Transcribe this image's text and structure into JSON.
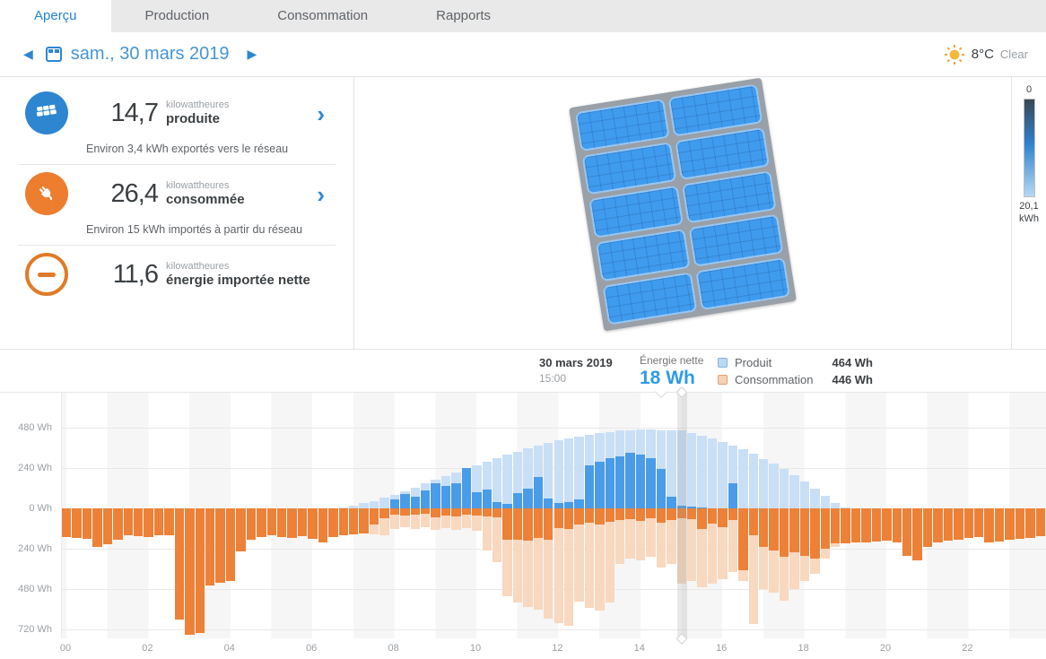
{
  "tabs": {
    "active_index": 0,
    "items": [
      "Aperçu",
      "Production",
      "Consommation",
      "Rapports"
    ]
  },
  "date_bar": {
    "date": "sam., 30 mars 2019",
    "temperature": "8°C",
    "condition": "Clear"
  },
  "stats": {
    "produced": {
      "value": "14,7",
      "unit": "kilowattheures",
      "label": "produite",
      "subtitle": "Environ 3,4 kWh exportés vers le réseau"
    },
    "consumed": {
      "value": "26,4",
      "unit": "kilowattheures",
      "label": "consommée",
      "subtitle": "Environ 15 kWh importés à partir du réseau"
    },
    "net": {
      "value": "11,6",
      "unit": "kilowattheures",
      "label": "énergie importée nette"
    }
  },
  "scale": {
    "top": "0",
    "bottom_value": "20,1",
    "bottom_unit": "kWh"
  },
  "tooltip": {
    "date": "30 mars 2019",
    "time": "15:00",
    "net_label": "Énergie nette",
    "net_value": "18 Wh",
    "legend": [
      {
        "label": "Produit",
        "value": "464 Wh",
        "swatch_color": "#bcd8f2"
      },
      {
        "label": "Consommation",
        "value": "446 Wh",
        "swatch_color": "#f6d2b4"
      }
    ]
  },
  "chart_data": {
    "type": "bar",
    "interval_minutes": 15,
    "unit": "Wh",
    "title": "Énergie par intervalle de 15 minutes, 30 mars 2019",
    "x_ticks": [
      "00",
      "02",
      "04",
      "06",
      "08",
      "10",
      "12",
      "14",
      "16",
      "18",
      "20",
      "22"
    ],
    "y_ticks_wh": [
      480,
      240,
      0,
      -240,
      -480,
      -720
    ],
    "y_tick_labels": [
      "480 Wh",
      "240 Wh",
      "0 Wh",
      "240 Wh",
      "480 Wh",
      "720 Wh"
    ],
    "ylim": [
      688,
      -779
    ],
    "selected_index": 60,
    "selected_time": "15:00",
    "grid": true,
    "legend_position": "top-right",
    "series": [
      {
        "name": "Produit (total)",
        "color": "#c9dff6",
        "values": [
          0,
          0,
          0,
          0,
          0,
          0,
          0,
          0,
          0,
          0,
          0,
          0,
          0,
          0,
          0,
          0,
          0,
          0,
          0,
          0,
          0,
          0,
          0,
          0,
          0,
          0,
          0,
          8,
          18,
          30,
          45,
          62,
          82,
          103,
          125,
          148,
          170,
          192,
          213,
          235,
          257,
          278,
          298,
          318,
          337,
          355,
          372,
          388,
          403,
          416,
          428,
          438,
          447,
          455,
          462,
          466,
          470,
          468,
          466,
          465,
          464,
          450,
          434,
          416,
          396,
          374,
          350,
          324,
          296,
          266,
          234,
          200,
          162,
          120,
          75,
          30,
          6,
          0,
          0,
          0,
          0,
          0,
          0,
          0,
          0,
          0,
          0,
          0,
          0,
          0,
          0,
          0,
          0,
          0,
          0,
          0
        ]
      },
      {
        "name": "Produit (surplus exporté)",
        "color": "#4a9ce8",
        "values": [
          0,
          0,
          0,
          0,
          0,
          0,
          0,
          0,
          0,
          0,
          0,
          0,
          0,
          0,
          0,
          0,
          0,
          0,
          0,
          0,
          0,
          0,
          0,
          0,
          0,
          0,
          0,
          0,
          0,
          0,
          0,
          0,
          55,
          85,
          70,
          105,
          150,
          135,
          150,
          240,
          95,
          110,
          35,
          25,
          90,
          115,
          185,
          60,
          30,
          40,
          55,
          255,
          280,
          300,
          310,
          330,
          320,
          300,
          235,
          70,
          18,
          10,
          5,
          0,
          0,
          150,
          0,
          0,
          0,
          0,
          0,
          0,
          0,
          0,
          0,
          0,
          0,
          0,
          0,
          0,
          0,
          0,
          0,
          0,
          0,
          0,
          0,
          0,
          0,
          0,
          0,
          0,
          0,
          0,
          0,
          0
        ]
      },
      {
        "name": "Consommation (totale)",
        "color": "#f8d8bf",
        "values": [
          -170,
          -175,
          -180,
          -230,
          -215,
          -185,
          -160,
          -165,
          -170,
          -162,
          -158,
          -660,
          -750,
          -740,
          -460,
          -440,
          -430,
          -255,
          -185,
          -172,
          -160,
          -172,
          -176,
          -166,
          -182,
          -200,
          -172,
          -162,
          -152,
          -148,
          -152,
          -162,
          -122,
          -112,
          -122,
          -112,
          -128,
          -118,
          -128,
          -118,
          -132,
          -252,
          -322,
          -520,
          -560,
          -585,
          -605,
          -655,
          -680,
          -700,
          -555,
          -590,
          -610,
          -560,
          -330,
          -300,
          -310,
          -290,
          -350,
          -330,
          -446,
          -430,
          -470,
          -450,
          -420,
          -380,
          -430,
          -690,
          -480,
          -500,
          -550,
          -480,
          -430,
          -390,
          -300,
          -230,
          -210,
          -205,
          -200,
          -195,
          -190,
          -200,
          -280,
          -310,
          -230,
          -200,
          -190,
          -185,
          -175,
          -170,
          -200,
          -195,
          -185,
          -180,
          -175,
          -165
        ]
      },
      {
        "name": "Consommation (importée du réseau)",
        "color": "#ed8137",
        "values": [
          -170,
          -175,
          -180,
          -230,
          -215,
          -185,
          -160,
          -165,
          -170,
          -162,
          -158,
          -660,
          -750,
          -740,
          -460,
          -440,
          -430,
          -255,
          -185,
          -172,
          -160,
          -172,
          -176,
          -166,
          -182,
          -200,
          -172,
          -162,
          -152,
          -148,
          -95,
          -60,
          -38,
          -42,
          -36,
          -30,
          -55,
          -40,
          -48,
          -35,
          -42,
          -48,
          -55,
          -185,
          -185,
          -190,
          -175,
          -185,
          -115,
          -125,
          -95,
          -85,
          -95,
          -80,
          -70,
          -65,
          -75,
          -60,
          -85,
          -70,
          -60,
          -65,
          -120,
          -90,
          -110,
          -70,
          -370,
          -160,
          -230,
          -250,
          -290,
          -260,
          -280,
          -300,
          -240,
          -210,
          -210,
          -205,
          -200,
          -195,
          -190,
          -200,
          -280,
          -310,
          -230,
          -200,
          -190,
          -185,
          -175,
          -170,
          -200,
          -195,
          -185,
          -180,
          -175,
          -165
        ]
      }
    ]
  }
}
